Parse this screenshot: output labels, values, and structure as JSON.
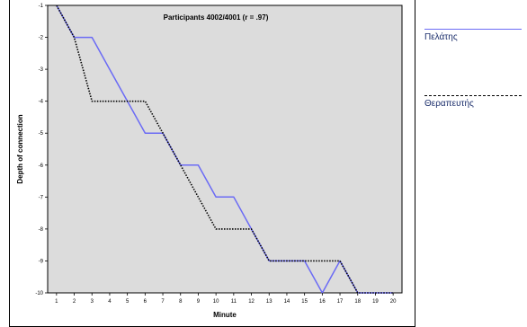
{
  "chart_data": {
    "type": "line",
    "title": "Participants 4002/4001 (r = .97)",
    "xlabel": "Minute",
    "ylabel": "Depth of connection",
    "xlim": [
      0.5,
      20.5
    ],
    "ylim": [
      -10,
      -1
    ],
    "x_ticks": [
      1,
      2,
      3,
      4,
      5,
      6,
      7,
      8,
      9,
      10,
      11,
      12,
      13,
      14,
      15,
      16,
      17,
      18,
      19,
      20
    ],
    "y_ticks": [
      -1,
      -2,
      -3,
      -4,
      -5,
      -6,
      -7,
      -8,
      -9,
      -10
    ],
    "series": [
      {
        "name": "Πελάτης",
        "style": "solid",
        "color": "#6b6bf5",
        "points": [
          [
            1,
            -1
          ],
          [
            2,
            -2
          ],
          [
            3,
            -2
          ],
          [
            4,
            -3
          ],
          [
            5,
            -4
          ],
          [
            6,
            -5
          ],
          [
            7,
            -5
          ],
          [
            8,
            -6
          ],
          [
            9,
            -6
          ],
          [
            10,
            -7
          ],
          [
            11,
            -7
          ],
          [
            12,
            -8
          ],
          [
            13,
            -9
          ],
          [
            14,
            -9
          ],
          [
            15,
            -9
          ],
          [
            16,
            -10
          ],
          [
            17,
            -9
          ],
          [
            18,
            -10
          ],
          [
            19,
            -10
          ],
          [
            20,
            -10
          ]
        ]
      },
      {
        "name": "Θεραπευτής",
        "style": "dotted",
        "color": "#000000",
        "points": [
          [
            1,
            -1
          ],
          [
            2,
            -2
          ],
          [
            3,
            -4
          ],
          [
            4,
            -4
          ],
          [
            5,
            -4
          ],
          [
            6,
            -4
          ],
          [
            7,
            -5
          ],
          [
            8,
            -6
          ],
          [
            9,
            -7
          ],
          [
            10,
            -8
          ],
          [
            11,
            -8
          ],
          [
            12,
            -8
          ],
          [
            13,
            -9
          ],
          [
            14,
            -9
          ],
          [
            15,
            -9
          ],
          [
            16,
            -9
          ],
          [
            17,
            -9
          ],
          [
            18,
            -10
          ],
          [
            19,
            -10
          ],
          [
            20,
            -10
          ]
        ]
      }
    ],
    "legend_position": "right"
  },
  "legend": {
    "items": [
      {
        "label": "Πελάτης"
      },
      {
        "label": "Θεραπευτής"
      }
    ]
  }
}
